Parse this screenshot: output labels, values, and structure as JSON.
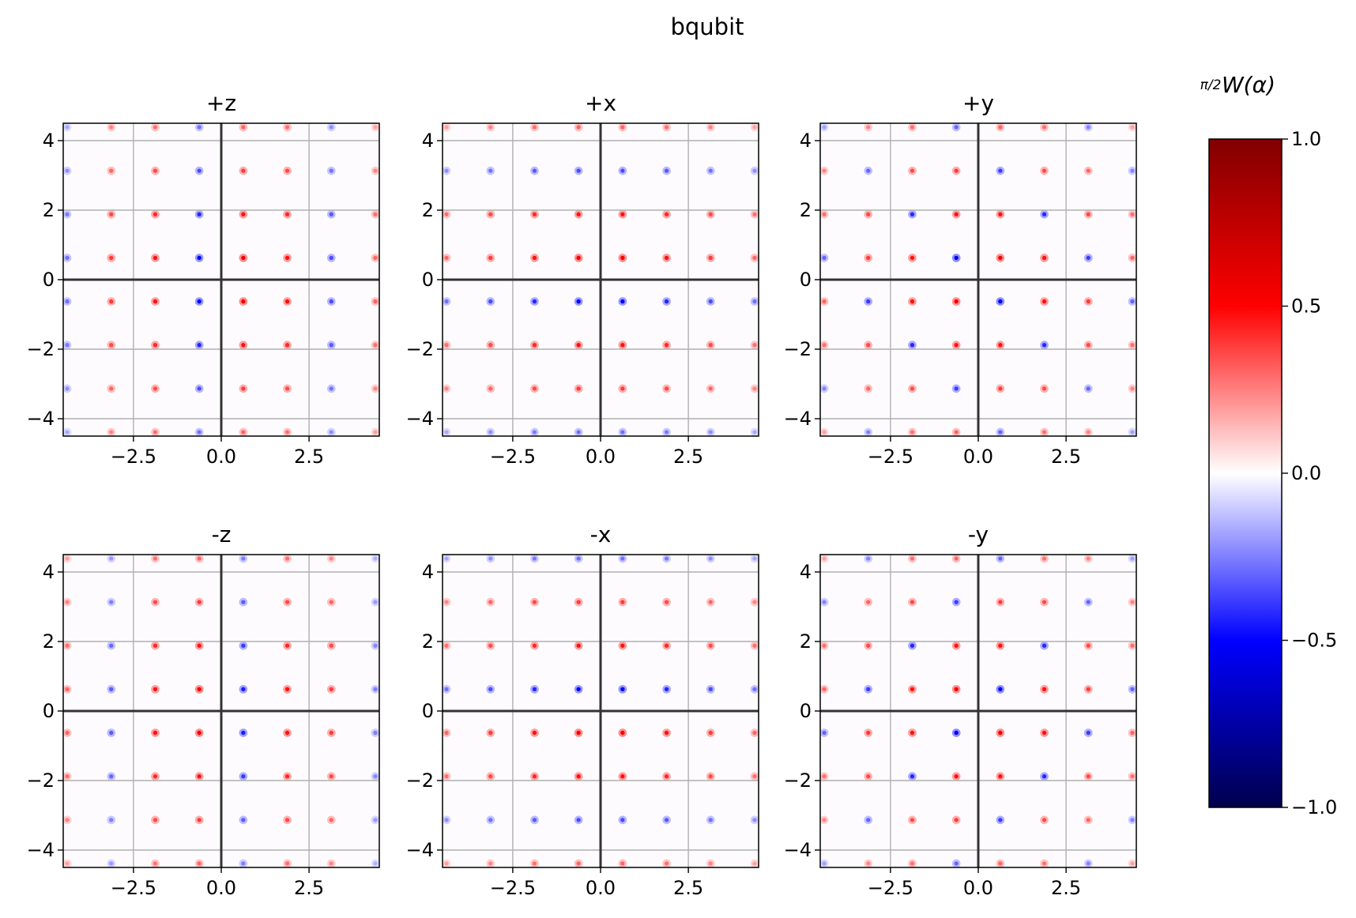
{
  "figure": {
    "suptitle": "bqubit"
  },
  "colorbar": {
    "label": "π/2 W(α)",
    "label_fraction": "π/2",
    "label_main": "W(α)",
    "range": [
      -1.0,
      1.0
    ],
    "ticks": [
      1.0,
      0.5,
      0.0,
      -0.5,
      -1.0
    ],
    "tick_labels": [
      "1.0",
      "0.5",
      "0.0",
      "−0.5",
      "−1.0"
    ],
    "colormap": "seismic",
    "colormap_stops": [
      "#00004c",
      "#0000ff",
      "#ffffff",
      "#ff0000",
      "#800000"
    ]
  },
  "chart_data": [
    {
      "type": "heatmap",
      "title": "+z",
      "pattern": "columns",
      "xlim": [
        -4.5,
        4.5
      ],
      "ylim": [
        -4.5,
        4.5
      ],
      "xticks": [
        -2.5,
        0.0,
        2.5
      ],
      "xtick_labels": [
        "−2.5",
        "0.0",
        "2.5"
      ],
      "yticks": [
        -4,
        -2,
        0,
        2,
        4
      ],
      "ytick_labels": [
        "−4",
        "−2",
        "0",
        "2",
        "4"
      ],
      "grid": true,
      "axes_lines": true,
      "spacing": 1.2533,
      "phase": 0.6267
    },
    {
      "type": "heatmap",
      "title": "+x",
      "pattern": "rows",
      "xlim": [
        -4.5,
        4.5
      ],
      "ylim": [
        -4.5,
        4.5
      ],
      "xticks": [
        -2.5,
        0.0,
        2.5
      ],
      "xtick_labels": [
        "−2.5",
        "0.0",
        "2.5"
      ],
      "yticks": [
        -4,
        -2,
        0,
        2,
        4
      ],
      "ytick_labels": [
        "−4",
        "−2",
        "0",
        "2",
        "4"
      ],
      "grid": true,
      "axes_lines": true,
      "spacing": 1.2533,
      "phase": 0.6267
    },
    {
      "type": "heatmap",
      "title": "+y",
      "pattern": "checker",
      "xlim": [
        -4.5,
        4.5
      ],
      "ylim": [
        -4.5,
        4.5
      ],
      "xticks": [
        -2.5,
        0.0,
        2.5
      ],
      "xtick_labels": [
        "−2.5",
        "0.0",
        "2.5"
      ],
      "yticks": [
        -4,
        -2,
        0,
        2,
        4
      ],
      "ytick_labels": [
        "−4",
        "−2",
        "0",
        "2",
        "4"
      ],
      "grid": true,
      "axes_lines": true,
      "spacing": 1.2533,
      "phase": 0.6267
    },
    {
      "type": "heatmap",
      "title": "-z",
      "pattern": "columns-neg",
      "xlim": [
        -4.5,
        4.5
      ],
      "ylim": [
        -4.5,
        4.5
      ],
      "xticks": [
        -2.5,
        0.0,
        2.5
      ],
      "xtick_labels": [
        "−2.5",
        "0.0",
        "2.5"
      ],
      "yticks": [
        -4,
        -2,
        0,
        2,
        4
      ],
      "ytick_labels": [
        "−4",
        "−2",
        "0",
        "2",
        "4"
      ],
      "grid": true,
      "axes_lines": true,
      "spacing": 1.2533,
      "phase": 0.6267
    },
    {
      "type": "heatmap",
      "title": "-x",
      "pattern": "rows-neg",
      "xlim": [
        -4.5,
        4.5
      ],
      "ylim": [
        -4.5,
        4.5
      ],
      "xticks": [
        -2.5,
        0.0,
        2.5
      ],
      "xtick_labels": [
        "−2.5",
        "0.0",
        "2.5"
      ],
      "yticks": [
        -4,
        -2,
        0,
        2,
        4
      ],
      "ytick_labels": [
        "−4",
        "−2",
        "0",
        "2",
        "4"
      ],
      "grid": true,
      "axes_lines": true,
      "spacing": 1.2533,
      "phase": 0.6267
    },
    {
      "type": "heatmap",
      "title": "-y",
      "pattern": "checker-neg",
      "xlim": [
        -4.5,
        4.5
      ],
      "ylim": [
        -4.5,
        4.5
      ],
      "xticks": [
        -2.5,
        0.0,
        2.5
      ],
      "xtick_labels": [
        "−2.5",
        "0.0",
        "2.5"
      ],
      "yticks": [
        -4,
        -2,
        0,
        2,
        4
      ],
      "ytick_labels": [
        "−4",
        "−2",
        "0",
        "2",
        "4"
      ],
      "grid": true,
      "axes_lines": true,
      "spacing": 1.2533,
      "phase": 0.6267
    }
  ]
}
